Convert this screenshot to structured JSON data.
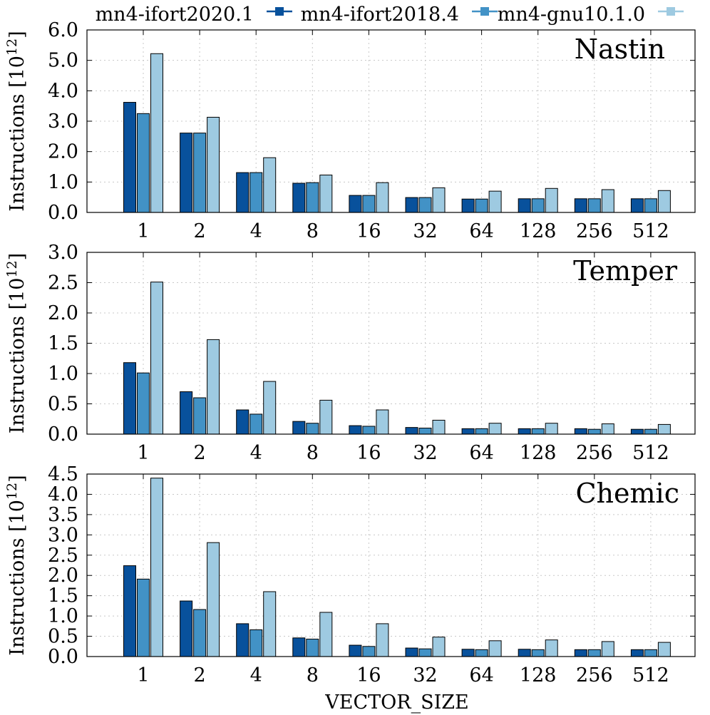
{
  "legend": [
    {
      "label": "mn4-ifort2020.1",
      "color": "#08519c"
    },
    {
      "label": "mn4-ifort2018.4",
      "color": "#4292c6"
    },
    {
      "label": "mn4-gnu10.1.0",
      "color": "#9ecae1"
    }
  ],
  "xlabel": "VECTOR_SIZE",
  "chart_data": [
    {
      "type": "bar",
      "title": "Nastin",
      "ylabel": "Instructions [10^12]",
      "ylim": [
        0,
        6
      ],
      "yticks": [
        "0.0",
        "1.0",
        "2.0",
        "3.0",
        "4.0",
        "5.0",
        "6.0"
      ],
      "xlabel": "VECTOR_SIZE",
      "categories": [
        "1",
        "2",
        "4",
        "8",
        "16",
        "32",
        "64",
        "128",
        "256",
        "512"
      ],
      "series": [
        {
          "name": "mn4-ifort2020.1",
          "values": [
            3.62,
            2.61,
            1.31,
            0.96,
            0.56,
            0.49,
            0.44,
            0.45,
            0.45,
            0.45
          ]
        },
        {
          "name": "mn4-ifort2018.4",
          "values": [
            3.25,
            2.61,
            1.31,
            0.98,
            0.56,
            0.49,
            0.44,
            0.45,
            0.45,
            0.45
          ]
        },
        {
          "name": "mn4-gnu10.1.0",
          "values": [
            5.22,
            3.13,
            1.8,
            1.23,
            0.98,
            0.81,
            0.7,
            0.79,
            0.75,
            0.72
          ]
        }
      ]
    },
    {
      "type": "bar",
      "title": "Temper",
      "ylabel": "Instructions [10^12]",
      "ylim": [
        0,
        3
      ],
      "yticks": [
        "0.0",
        "0.5",
        "1.0",
        "1.5",
        "2.0",
        "2.5",
        "3.0"
      ],
      "xlabel": "VECTOR_SIZE",
      "categories": [
        "1",
        "2",
        "4",
        "8",
        "16",
        "32",
        "64",
        "128",
        "256",
        "512"
      ],
      "series": [
        {
          "name": "mn4-ifort2020.1",
          "values": [
            1.18,
            0.7,
            0.4,
            0.21,
            0.14,
            0.11,
            0.09,
            0.09,
            0.09,
            0.08
          ]
        },
        {
          "name": "mn4-ifort2018.4",
          "values": [
            1.01,
            0.6,
            0.33,
            0.18,
            0.13,
            0.1,
            0.09,
            0.09,
            0.08,
            0.08
          ]
        },
        {
          "name": "mn4-gnu10.1.0",
          "values": [
            2.51,
            1.56,
            0.87,
            0.56,
            0.4,
            0.23,
            0.18,
            0.18,
            0.17,
            0.16
          ]
        }
      ]
    },
    {
      "type": "bar",
      "title": "Chemic",
      "ylabel": "Instructions [10^12]",
      "ylim": [
        0,
        4.5
      ],
      "yticks": [
        "0.0",
        "0.5",
        "1.0",
        "1.5",
        "2.0",
        "2.5",
        "3.0",
        "3.5",
        "4.0",
        "4.5"
      ],
      "xlabel": "VECTOR_SIZE",
      "categories": [
        "1",
        "2",
        "4",
        "8",
        "16",
        "32",
        "64",
        "128",
        "256",
        "512"
      ],
      "series": [
        {
          "name": "mn4-ifort2020.1",
          "values": [
            2.24,
            1.37,
            0.81,
            0.46,
            0.28,
            0.21,
            0.18,
            0.18,
            0.17,
            0.17
          ]
        },
        {
          "name": "mn4-ifort2018.4",
          "values": [
            1.91,
            1.16,
            0.66,
            0.43,
            0.25,
            0.19,
            0.17,
            0.17,
            0.17,
            0.17
          ]
        },
        {
          "name": "mn4-gnu10.1.0",
          "values": [
            4.4,
            2.81,
            1.6,
            1.09,
            0.81,
            0.48,
            0.39,
            0.41,
            0.37,
            0.35
          ]
        }
      ]
    }
  ]
}
